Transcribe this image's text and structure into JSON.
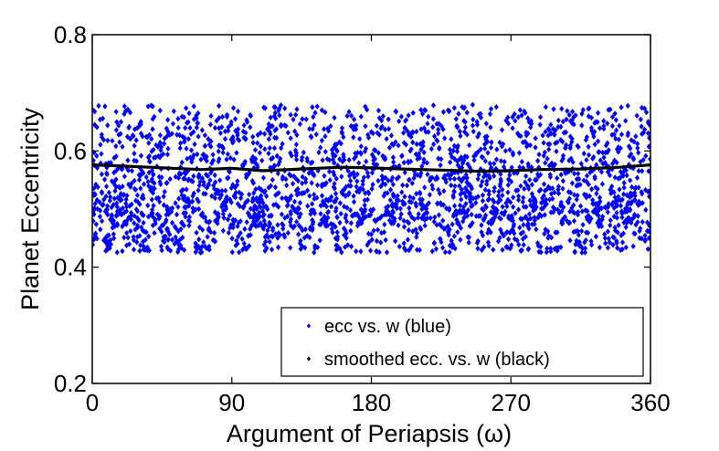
{
  "chart_data": {
    "type": "scatter",
    "xlabel": "Argument of Periapsis (ω)",
    "ylabel": "Planet Eccentricity",
    "xlim": [
      0,
      360
    ],
    "ylim": [
      0.2,
      0.8
    ],
    "xticks": [
      "0",
      "90",
      "180",
      "270",
      "360"
    ],
    "yticks": [
      "0.2",
      "0.4",
      "0.6",
      "0.8"
    ],
    "grid": false,
    "legend_position": "bottom-right",
    "series": [
      {
        "name": "ecc vs. w (blue)",
        "style": "dots",
        "color": "#0000ff",
        "value_range": [
          0.425,
          0.68
        ],
        "x_range": [
          0,
          360
        ]
      },
      {
        "name": "smoothed ecc. vs. w (black)",
        "style": "line",
        "color": "#000000",
        "x": [
          0,
          20,
          45,
          70,
          90,
          110,
          135,
          160,
          180,
          200,
          225,
          250,
          270,
          290,
          315,
          340,
          360
        ],
        "y": [
          0.576,
          0.574,
          0.571,
          0.568,
          0.57,
          0.566,
          0.569,
          0.572,
          0.571,
          0.569,
          0.567,
          0.565,
          0.566,
          0.568,
          0.569,
          0.572,
          0.576
        ]
      }
    ]
  }
}
